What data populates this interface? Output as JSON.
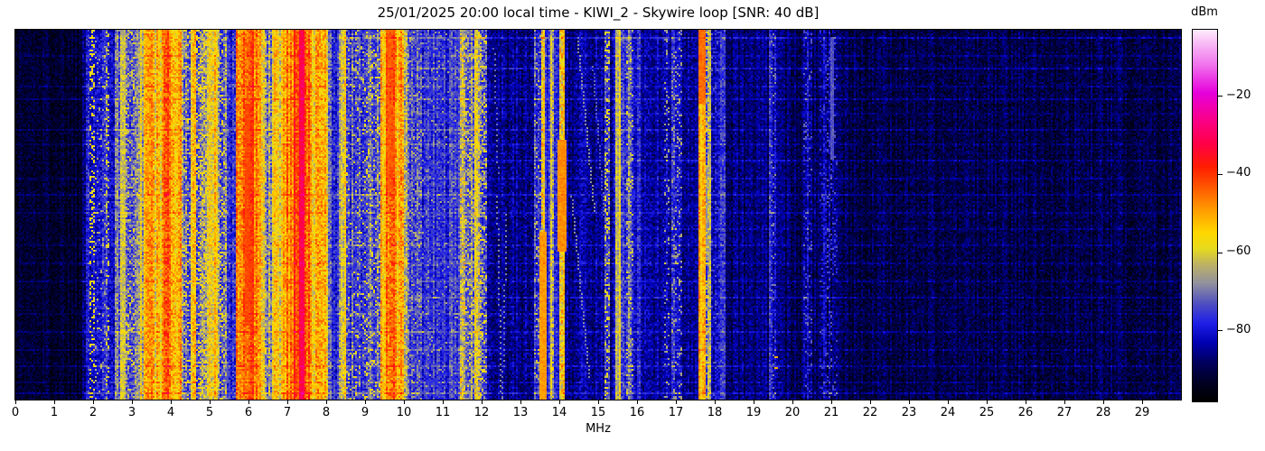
{
  "title": "25/01/2025 20:00 local time - KIWI_2 - Skywire loop [SNR: 40 dB]",
  "x_axis": {
    "label": "MHz",
    "ticks": [
      0,
      1,
      2,
      3,
      4,
      5,
      6,
      7,
      8,
      9,
      10,
      11,
      12,
      13,
      14,
      15,
      16,
      17,
      18,
      19,
      20,
      21,
      22,
      23,
      24,
      25,
      26,
      27,
      28,
      29
    ],
    "range": [
      0,
      30
    ]
  },
  "y_axis": {
    "label": "",
    "ticks": []
  },
  "colorbar": {
    "label": "dBm",
    "vmin": -98,
    "vmax": -3,
    "ticks": [
      {
        "v": -20,
        "label": "−20"
      },
      {
        "v": -40,
        "label": "−40"
      },
      {
        "v": -60,
        "label": "−60"
      },
      {
        "v": -80,
        "label": "−80"
      }
    ],
    "stops": [
      [
        -98,
        "#000000"
      ],
      [
        -93,
        "#000026"
      ],
      [
        -88,
        "#000060"
      ],
      [
        -83,
        "#0000b4"
      ],
      [
        -78,
        "#2020e8"
      ],
      [
        -73,
        "#5050c0"
      ],
      [
        -68,
        "#9090a0"
      ],
      [
        -63,
        "#beb264"
      ],
      [
        -59,
        "#e6da1e"
      ],
      [
        -55,
        "#ffd800"
      ],
      [
        -49,
        "#ff9c00"
      ],
      [
        -43,
        "#ff5400"
      ],
      [
        -38,
        "#ff1e00"
      ],
      [
        -32,
        "#ff0048"
      ],
      [
        -26,
        "#fa0088"
      ],
      [
        -19,
        "#e600dc"
      ],
      [
        -12,
        "#f070ec"
      ],
      [
        -6,
        "#f9c0f6"
      ],
      [
        -3,
        "#fdeafc"
      ]
    ]
  },
  "chart_data": {
    "type": "heatmap",
    "title": "25/01/2025 20:00 local time - KIWI_2 - Skywire loop [SNR: 40 dB]",
    "xlabel": "MHz",
    "ylabel": "",
    "x_range": [
      0,
      30
    ],
    "value_unit": "dBm",
    "value_range": [
      -98,
      -3
    ],
    "legend_position": "right-colorbar",
    "grid": false,
    "seed": 1337,
    "cols": 645,
    "rows": 205,
    "bands_comment": "frequency bands: [fStartMHz, fEndMHz, baseLevel_dBm, columnVariation_dB, cellNoise_dB, optionalBurstLevel_dBm, optionalBurstProb]",
    "bands": [
      [
        0.0,
        1.72,
        -92,
        2.5,
        3.5
      ],
      [
        1.72,
        1.8,
        -85,
        4,
        5
      ],
      [
        1.8,
        1.93,
        -74,
        5,
        6
      ],
      [
        1.93,
        2.06,
        -80,
        4,
        5,
        -58,
        0.3
      ],
      [
        2.06,
        2.32,
        -80,
        4,
        5,
        -65,
        0.1
      ],
      [
        2.32,
        2.42,
        -76,
        5,
        6,
        -60,
        0.25
      ],
      [
        2.42,
        2.56,
        -79,
        4,
        5
      ],
      [
        2.56,
        2.64,
        -64,
        7,
        7
      ],
      [
        2.64,
        2.72,
        -72,
        6,
        7
      ],
      [
        2.72,
        2.82,
        -59,
        4,
        5
      ],
      [
        2.82,
        3.06,
        -74,
        6,
        7,
        -60,
        0.15
      ],
      [
        3.06,
        3.3,
        -63,
        7,
        7
      ],
      [
        3.3,
        3.55,
        -50,
        5,
        6
      ],
      [
        3.55,
        3.76,
        -55,
        7,
        7
      ],
      [
        3.76,
        4.0,
        -47,
        6,
        6
      ],
      [
        4.0,
        4.12,
        -52,
        6,
        7
      ],
      [
        4.12,
        4.3,
        -49,
        5,
        6
      ],
      [
        4.3,
        4.5,
        -71,
        6,
        7,
        -58,
        0.15
      ],
      [
        4.5,
        4.66,
        -57,
        6,
        7
      ],
      [
        4.66,
        4.92,
        -69,
        6,
        7,
        -57,
        0.22
      ],
      [
        4.92,
        5.1,
        -58,
        6,
        7
      ],
      [
        5.1,
        5.22,
        -53,
        5,
        6
      ],
      [
        5.22,
        5.42,
        -70,
        6,
        7,
        -59,
        0.2
      ],
      [
        5.42,
        5.68,
        -77,
        5,
        6
      ],
      [
        5.68,
        5.92,
        -47,
        5,
        6
      ],
      [
        5.92,
        6.12,
        -43,
        4,
        5
      ],
      [
        6.12,
        6.32,
        -48,
        5,
        6
      ],
      [
        6.32,
        6.6,
        -64,
        9,
        8
      ],
      [
        6.6,
        6.9,
        -56,
        7,
        7
      ],
      [
        6.9,
        7.18,
        -47,
        5,
        6
      ],
      [
        7.18,
        7.28,
        -40,
        4,
        5
      ],
      [
        7.28,
        7.46,
        -31,
        2.5,
        3
      ],
      [
        7.46,
        7.6,
        -45,
        5,
        6
      ],
      [
        7.6,
        8.05,
        -53,
        6,
        7
      ],
      [
        8.05,
        8.33,
        -75,
        5,
        6
      ],
      [
        8.33,
        8.5,
        -61,
        6,
        7
      ],
      [
        8.5,
        9.0,
        -74,
        5,
        6,
        -60,
        0.08
      ],
      [
        9.0,
        9.38,
        -73,
        5,
        6,
        -58,
        0.12
      ],
      [
        9.38,
        9.55,
        -53,
        5,
        6
      ],
      [
        9.55,
        9.8,
        -46,
        5,
        6
      ],
      [
        9.8,
        9.98,
        -54,
        6,
        7
      ],
      [
        9.98,
        10.15,
        -68,
        6,
        7
      ],
      [
        10.15,
        10.45,
        -75,
        4,
        6,
        -64,
        0.08
      ],
      [
        10.45,
        11.45,
        -77,
        4,
        5,
        -66,
        0.04
      ],
      [
        11.45,
        11.6,
        -61,
        6,
        7,
        -53,
        0.2
      ],
      [
        11.6,
        11.8,
        -72,
        6,
        7,
        -60,
        0.15
      ],
      [
        11.8,
        11.94,
        -63,
        6,
        7,
        -55,
        0.2
      ],
      [
        11.94,
        12.14,
        -68,
        7,
        8,
        -58,
        0.15
      ],
      [
        12.14,
        12.55,
        -85,
        3.5,
        4.5
      ],
      [
        12.55,
        13.35,
        -86,
        3.5,
        4.5
      ],
      [
        13.35,
        13.52,
        -77,
        5,
        6,
        -63,
        0.12
      ],
      [
        13.52,
        13.64,
        -58,
        6,
        6,
        -50,
        0.25
      ],
      [
        13.64,
        13.76,
        -78,
        4,
        5
      ],
      [
        13.76,
        13.86,
        -64,
        6,
        6,
        -56,
        0.2
      ],
      [
        13.86,
        13.99,
        -79,
        4,
        5
      ],
      [
        13.99,
        14.14,
        -55,
        5,
        6,
        -48,
        0.2
      ],
      [
        14.14,
        15.15,
        -85,
        3.5,
        4.5
      ],
      [
        15.15,
        15.28,
        -73,
        5,
        6,
        -60,
        0.25
      ],
      [
        15.28,
        15.46,
        -84,
        4,
        5
      ],
      [
        15.46,
        15.58,
        -62,
        4,
        5
      ],
      [
        15.58,
        15.74,
        -77,
        5,
        6
      ],
      [
        15.74,
        15.92,
        -73,
        5,
        6,
        -61,
        0.15
      ],
      [
        15.92,
        16.1,
        -79,
        4,
        5
      ],
      [
        16.1,
        16.68,
        -84,
        3.5,
        4.5
      ],
      [
        16.68,
        16.82,
        -80,
        4,
        5,
        -66,
        0.12
      ],
      [
        16.82,
        16.9,
        -84,
        3.5,
        4.5
      ],
      [
        16.9,
        17.18,
        -80,
        4,
        5,
        -66,
        0.15
      ],
      [
        17.18,
        17.6,
        -85,
        3.5,
        4.5
      ],
      [
        17.6,
        17.76,
        -52,
        4,
        5
      ],
      [
        17.76,
        17.9,
        -70,
        6,
        7,
        -62,
        0.2
      ],
      [
        17.9,
        18.14,
        -81,
        4,
        5,
        -73,
        0.07
      ],
      [
        18.14,
        18.3,
        -78,
        4,
        5,
        -72,
        0.08
      ],
      [
        18.3,
        19.4,
        -87,
        3,
        4
      ],
      [
        19.4,
        19.6,
        -80,
        4,
        5,
        -70,
        0.1
      ],
      [
        19.6,
        20.3,
        -88,
        3,
        4
      ],
      [
        20.3,
        20.5,
        -83,
        4,
        5,
        -73,
        0.1
      ],
      [
        20.5,
        20.72,
        -88,
        3,
        4
      ],
      [
        20.72,
        20.88,
        -84,
        4,
        5,
        -76,
        0.1
      ],
      [
        20.88,
        21.15,
        -86,
        4,
        5,
        -74,
        0.12
      ],
      [
        21.15,
        30.0,
        -90,
        2.5,
        4
      ]
    ],
    "patches_comment": "localized blobs: [f0,f1,rowFrac0,rowFrac1,level_dBm]",
    "patches": [
      [
        13.99,
        14.14,
        0.3,
        0.6,
        -48
      ],
      [
        13.53,
        13.64,
        0.55,
        1.0,
        -49
      ],
      [
        17.61,
        17.74,
        0.0,
        0.2,
        -45
      ],
      [
        17.74,
        17.88,
        0.38,
        0.62,
        -68
      ],
      [
        21.0,
        21.06,
        0.02,
        0.35,
        -73
      ],
      [
        9.55,
        9.75,
        0.0,
        0.45,
        -44
      ],
      [
        5.92,
        6.1,
        0.2,
        0.8,
        -42
      ]
    ],
    "horizontal_lines_comment": "faint time-event rows: [rowFrac, boost_dB, f0, f1]",
    "horizontal_lines": [
      [
        0.022,
        6,
        8,
        30
      ],
      [
        0.068,
        3,
        0,
        30
      ],
      [
        0.105,
        5,
        8,
        30
      ],
      [
        0.15,
        3,
        0,
        30
      ],
      [
        0.185,
        4,
        0,
        30
      ],
      [
        0.225,
        3,
        10,
        30
      ],
      [
        0.268,
        4,
        0,
        30
      ],
      [
        0.31,
        3,
        0,
        30
      ],
      [
        0.355,
        5,
        12,
        30
      ],
      [
        0.4,
        3,
        0,
        30
      ],
      [
        0.445,
        4,
        0,
        30
      ],
      [
        0.493,
        3,
        0,
        30
      ],
      [
        0.54,
        4,
        16,
        30
      ],
      [
        0.585,
        3,
        0,
        30
      ],
      [
        0.632,
        4,
        0,
        30
      ],
      [
        0.68,
        3,
        0,
        30
      ],
      [
        0.725,
        4,
        10,
        30
      ],
      [
        0.772,
        3,
        0,
        30
      ],
      [
        0.82,
        5,
        0,
        30
      ],
      [
        0.868,
        3,
        0,
        30
      ],
      [
        0.912,
        4,
        0,
        30
      ],
      [
        0.955,
        3,
        0,
        30
      ],
      [
        0.985,
        5,
        0,
        30
      ]
    ],
    "diagonal_chirps_comment": "dotted sweep traces: [fStart, rowFrac0, rowFrac1, dMHzPerRow, level_dBm, dotStep]",
    "diagonal_chirps": [
      [
        14.45,
        0.02,
        0.5,
        0.0045,
        -68,
        2
      ],
      [
        14.3,
        0.45,
        0.95,
        0.0045,
        -69,
        2
      ],
      [
        14.85,
        0.1,
        0.65,
        0.0035,
        -72,
        2
      ],
      [
        12.38,
        0.45,
        1.0,
        0.001,
        -69,
        3
      ],
      [
        12.62,
        0.5,
        1.0,
        -0.001,
        -70,
        3
      ],
      [
        12.3,
        0.05,
        0.4,
        0.0015,
        -71,
        3
      ]
    ],
    "spots_comment": "isolated bright marks: [fMHz, rowFrac, level_dBm]",
    "spots": [
      [
        19.52,
        0.885,
        -52
      ],
      [
        19.52,
        0.91,
        -52
      ]
    ]
  }
}
